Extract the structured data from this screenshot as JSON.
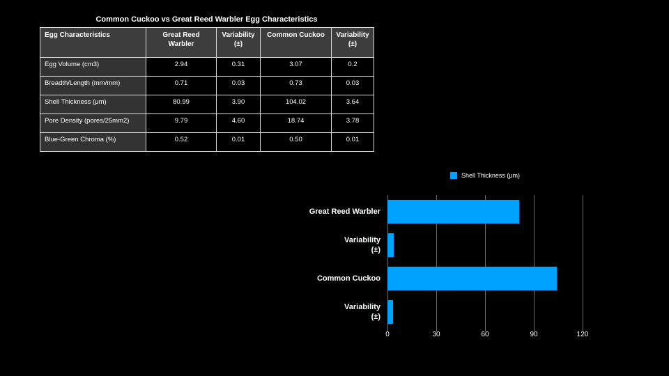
{
  "page": {
    "title": "Common Cuckoo vs Great Reed Warbler Egg Characteristics"
  },
  "table": {
    "columns": [
      "Egg Characteristics",
      "Great Reed Warbler",
      "Variability (±)",
      "Common Cuckoo",
      "Variability (±)"
    ],
    "rows": [
      {
        "label": "Egg Volume (cm3)",
        "values": [
          "2.94",
          "0.31",
          "3.07",
          "0.2"
        ]
      },
      {
        "label": "Breadth/Length (mm/mm)",
        "values": [
          "0.71",
          "0.03",
          "0.73",
          "0.03"
        ]
      },
      {
        "label": "Shell Thickness (μm)",
        "values": [
          "80.99",
          "3.90",
          "104.02",
          "3.64"
        ]
      },
      {
        "label": "Pore Density (pores/25mm2)",
        "values": [
          "9.79",
          "4.60",
          "18.74",
          "3.78"
        ]
      },
      {
        "label": "Blue-Green Chroma (%)",
        "values": [
          "0.52",
          "0.01",
          "0.50",
          "0.01"
        ]
      }
    ]
  },
  "chart_data": {
    "type": "bar",
    "orientation": "horizontal",
    "legend": "Shell Thickness (μm)",
    "legend_position": "top",
    "categories": [
      "Great Reed Warbler",
      "Variability (±)",
      "Common Cuckoo",
      "Variability (±)"
    ],
    "category_lines": [
      [
        "Great Reed Warbler"
      ],
      [
        "Variability",
        "(±)"
      ],
      [
        "Common Cuckoo"
      ],
      [
        "Variability",
        "(±)"
      ]
    ],
    "values": [
      80.99,
      3.9,
      104.02,
      3.64
    ],
    "xlim": [
      0,
      120
    ],
    "xticks": [
      0,
      30,
      60,
      90,
      120
    ],
    "grid": true,
    "bar_color": "#00a2ff"
  },
  "colors": {
    "background": "#000000",
    "accent_blue": "#00a2ff",
    "table_header_bg": "#3d3d3d",
    "table_label_bg": "#333333",
    "table_border": "#dddddd",
    "gridline": "#6b6b6b",
    "text": "#ffffff"
  }
}
